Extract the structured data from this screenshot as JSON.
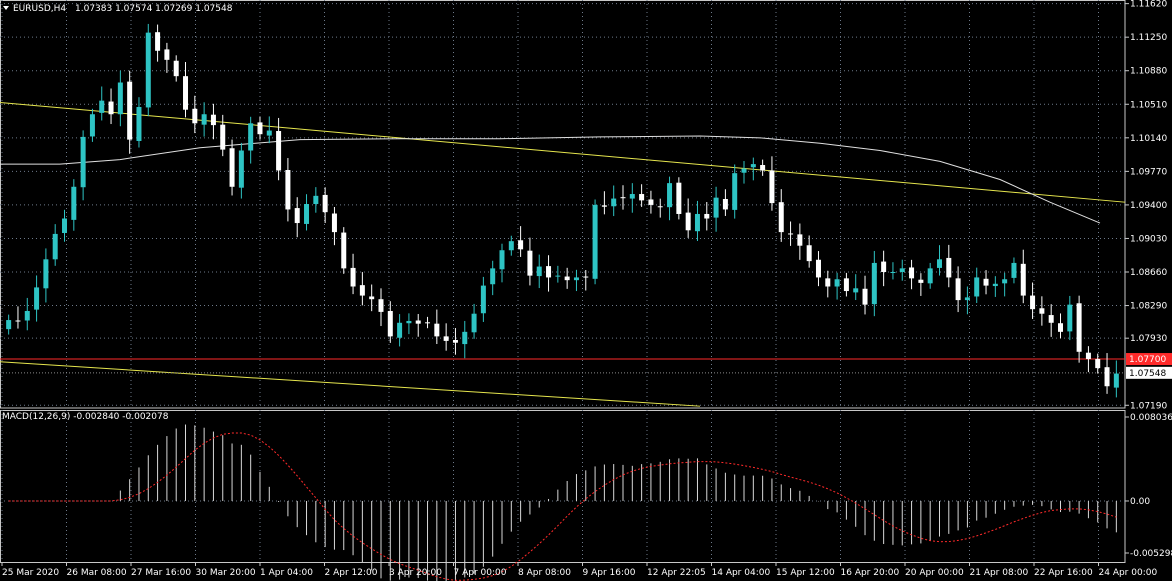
{
  "header": {
    "symbol": "EURUSD,H4",
    "ohlc": "1.07383 1.07574 1.07269 1.07548"
  },
  "colors": {
    "background": "#000000",
    "grid": "#6e7a8a",
    "bull": "#2ec4c4",
    "bear": "#ffffff",
    "trendline": "#e6e64e",
    "ma": "#e0e0e0",
    "red_line": "#ff2a2a",
    "signal": "#ff2a2a"
  },
  "chart_data": [
    {
      "type": "candlestick",
      "title": "",
      "price_axis": [
        "1.11620",
        "1.11250",
        "1.10880",
        "1.10510",
        "1.10140",
        "1.09770",
        "1.09400",
        "1.09030",
        "1.08660",
        "1.08290",
        "1.07930",
        "1.07190"
      ],
      "time_axis": [
        "25 Mar 2020",
        "26 Mar 08:00",
        "27 Mar 16:00",
        "30 Mar 20:00",
        "1 Apr 04:00",
        "2 Apr 12:00",
        "3 Apr 20:00",
        "7 Apr 00:00",
        "8 Apr 08:00",
        "9 Apr 16:00",
        "12 Apr 22:05",
        "14 Apr 04:00",
        "15 Apr 12:00",
        "16 Apr 20:00",
        "20 Apr 00:00",
        "21 Apr 08:00",
        "22 Apr 16:00",
        "24 Apr 00:00"
      ],
      "ylim": [
        1.0716,
        1.1166
      ],
      "red_line": {
        "value": 1.077,
        "label": "1.07700"
      },
      "current_price": {
        "value": 1.07548,
        "label": "1.07548"
      },
      "close": [
        1.0813,
        1.0812,
        1.0823,
        1.0849,
        1.088,
        1.0908,
        1.0925,
        1.096,
        1.1015,
        1.104,
        1.1055,
        1.104,
        1.1075,
        1.1012,
        1.1048,
        1.113,
        1.111,
        1.11,
        1.1082,
        1.1045,
        1.103,
        1.104,
        1.1028,
        1.1001,
        1.096,
        1.1,
        1.103,
        1.1018,
        1.1022,
        1.0978,
        1.0935,
        1.092,
        1.0941,
        1.095,
        1.0932,
        1.091,
        1.087,
        1.085,
        1.084,
        1.0836,
        1.0822,
        1.0795,
        1.081,
        1.0812,
        1.0809,
        1.081,
        1.0795,
        1.079,
        1.0788,
        1.08,
        1.082,
        1.0851,
        1.087,
        1.089,
        1.09,
        1.0891,
        1.0862,
        1.0872,
        1.086,
        1.0862,
        1.0857,
        1.086,
        1.086,
        1.094,
        1.0938,
        1.0947,
        1.0948,
        1.0952,
        1.0945,
        1.094,
        1.0938,
        1.0964,
        1.093,
        1.0912,
        1.093,
        1.0925,
        1.0948,
        1.0935,
        1.0975,
        1.098,
        1.0985,
        1.0978,
        1.0942,
        1.091,
        1.0908,
        1.0895,
        1.0878,
        1.086,
        1.085,
        1.0858,
        1.0845,
        1.0848,
        1.083,
        1.0876,
        1.0866,
        1.0866,
        1.087,
        1.0859,
        1.0854,
        1.087,
        1.088,
        1.086,
        1.0835,
        1.0838,
        1.086,
        1.0851,
        1.0853,
        1.0858,
        1.0876,
        1.084,
        1.0825,
        1.082,
        1.081,
        1.08,
        1.083,
        1.0778,
        1.077,
        1.076,
        1.074,
        1.0754
      ],
      "macd_panel": {
        "label": "MACD(12,26,9) -0.002840 -0.002078",
        "axis": [
          "0.008036",
          "0.00",
          "-0.005298"
        ],
        "ylim": [
          -0.0055,
          0.0082
        ]
      }
    }
  ]
}
